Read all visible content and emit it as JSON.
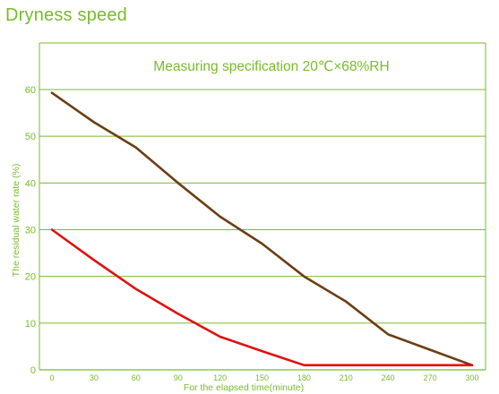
{
  "page_title": "Dryness speed",
  "colors": {
    "accent_green": "#78bb2c",
    "series_brown": "#6b3e12",
    "series_red": "#e01010"
  },
  "chart_data": {
    "type": "line",
    "title": "",
    "subtitle": "Measuring specification 20℃×68%RH",
    "xlabel": "For the elapsed time(minute)",
    "ylabel": "The residual water rate (%)",
    "xlim": [
      0,
      300
    ],
    "ylim": [
      0,
      60
    ],
    "x_ticks": [
      0,
      30,
      60,
      90,
      120,
      150,
      180,
      210,
      240,
      270,
      300
    ],
    "y_ticks": [
      0,
      10,
      20,
      30,
      40,
      50,
      60
    ],
    "grid": "horizontal",
    "legend": "none",
    "series": [
      {
        "color": "#6b3e12",
        "x": [
          0,
          30,
          60,
          90,
          120,
          150,
          180,
          210,
          240,
          270,
          300
        ],
        "y": [
          59.3,
          53,
          47.6,
          40,
          32.8,
          27,
          20,
          14.6,
          7.6,
          4.3,
          1
        ]
      },
      {
        "color": "#e01010",
        "x": [
          0,
          30,
          60,
          90,
          120,
          150,
          180,
          210,
          240,
          270,
          300
        ],
        "y": [
          30,
          23.5,
          17.3,
          12,
          7.1,
          4,
          1,
          1,
          1,
          1,
          1
        ]
      }
    ]
  }
}
